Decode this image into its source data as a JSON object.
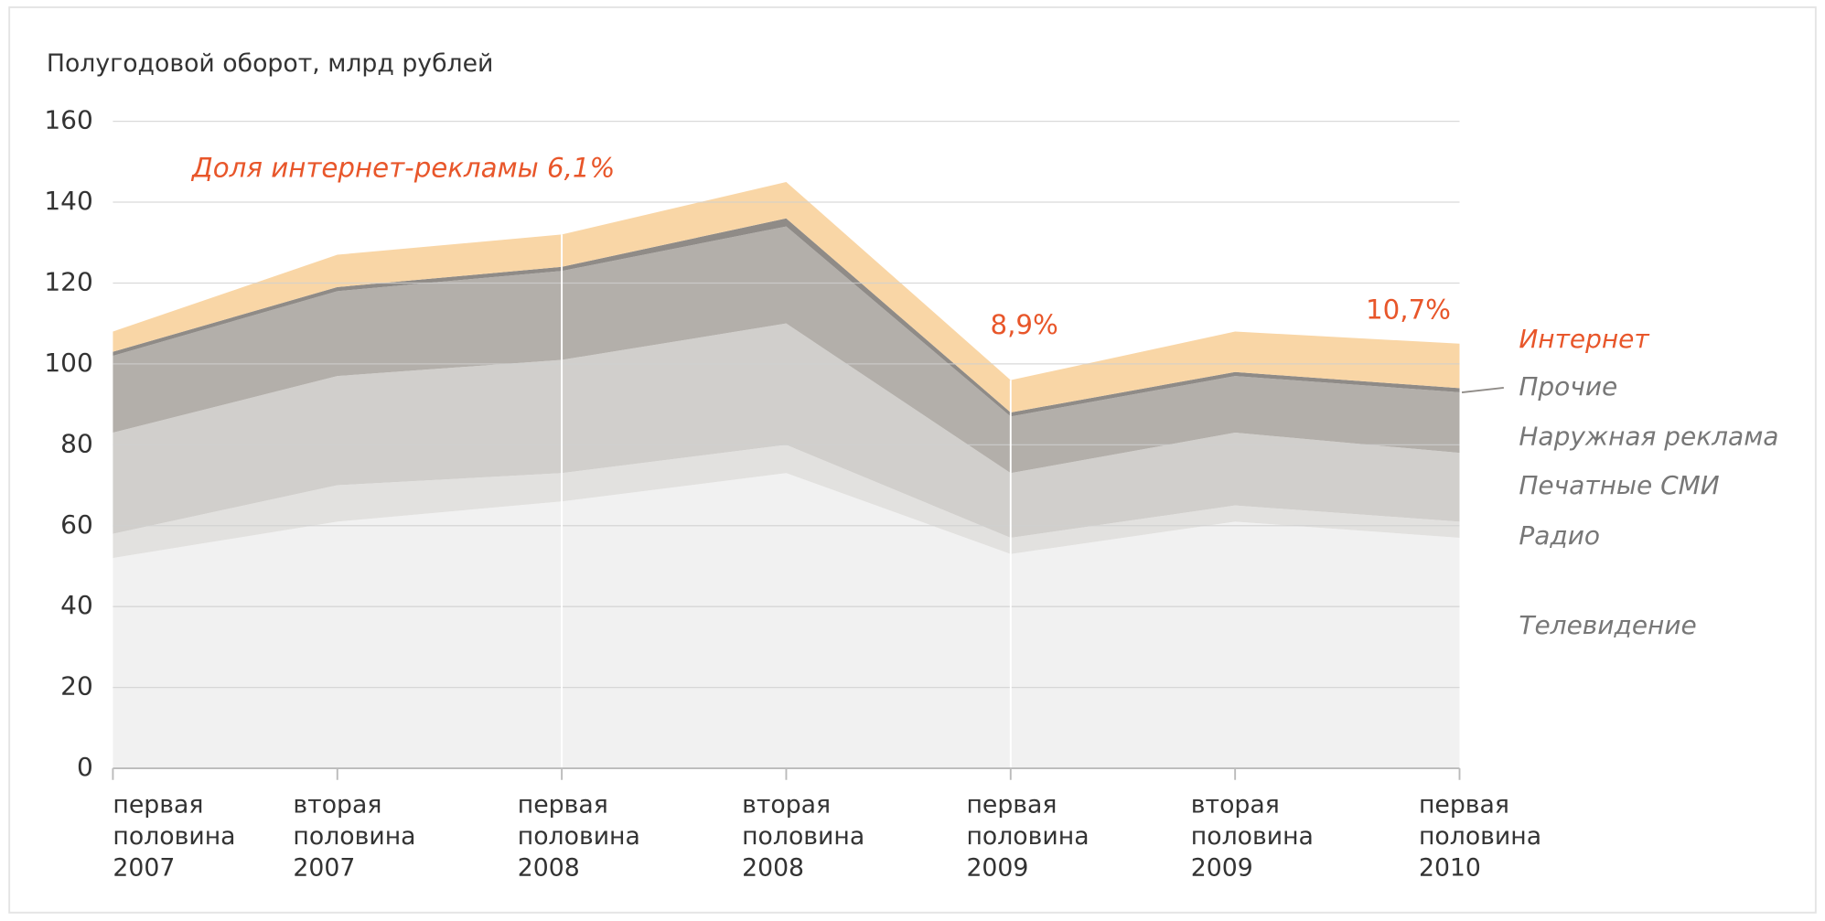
{
  "chart_data": {
    "type": "stacked_area",
    "title": "Полугодовой оборот, млрд рублей",
    "categories": [
      [
        "первая",
        "половина",
        "2007"
      ],
      [
        "вторая",
        "половина",
        "2007"
      ],
      [
        "первая",
        "половина",
        "2008"
      ],
      [
        "вторая",
        "половина",
        "2008"
      ],
      [
        "первая",
        "половина",
        "2009"
      ],
      [
        "вторая",
        "половина",
        "2009"
      ],
      [
        "первая",
        "половина",
        "2010"
      ]
    ],
    "series": [
      {
        "name": "Телевидение",
        "color": "#f1f1f1",
        "values": [
          52,
          61,
          66,
          73,
          53,
          61,
          57
        ]
      },
      {
        "name": "Радио",
        "color": "#e2e1df",
        "values": [
          6,
          9,
          7,
          7,
          4,
          4,
          4
        ]
      },
      {
        "name": "Печатные СМИ",
        "color": "#d1cfcc",
        "values": [
          25,
          27,
          28,
          30,
          16,
          18,
          17
        ]
      },
      {
        "name": "Наружная реклама",
        "color": "#b3afaa",
        "values": [
          19,
          21,
          22,
          24,
          14,
          14,
          15
        ]
      },
      {
        "name": "Прочие",
        "color": "#8f8b87",
        "values": [
          1,
          1,
          1,
          2,
          1,
          1,
          1
        ]
      },
      {
        "name": "Интернет",
        "color": "#f9d6a6",
        "values": [
          5,
          8,
          8,
          9,
          8,
          10,
          11
        ]
      }
    ],
    "annotations": [
      "Доля интернет-рекламы 6,1%",
      "8,9%",
      "10,7%"
    ],
    "annotation_color": "#e8562a",
    "ylim": [
      0,
      160
    ],
    "yticks": [
      0,
      20,
      40,
      60,
      80,
      100,
      120,
      140,
      160
    ],
    "grid": true
  }
}
